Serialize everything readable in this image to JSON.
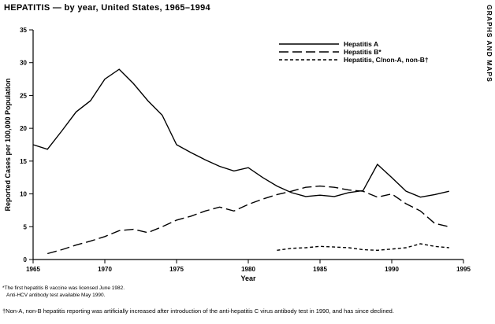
{
  "page": {
    "title": "HEPATITIS — by year, United States, 1965–1994",
    "side_label": "GRAPHS AND MAPS"
  },
  "chart_data": {
    "type": "line",
    "title": "HEPATITIS — by year, United States, 1965–1994",
    "xlabel": "Year",
    "ylabel": "Reported Cases per 100,000 Population",
    "xlim": [
      1965,
      1995
    ],
    "ylim": [
      0,
      35
    ],
    "x_ticks": [
      1965,
      1970,
      1975,
      1980,
      1985,
      1990,
      1995
    ],
    "y_ticks": [
      0,
      5,
      10,
      15,
      20,
      25,
      30,
      35
    ],
    "grid": false,
    "legend_position": "top-right",
    "line_color": "#000000",
    "series": [
      {
        "name": "Hepatitis A",
        "dash": "solid",
        "x": [
          1965,
          1966,
          1967,
          1968,
          1969,
          1970,
          1971,
          1972,
          1973,
          1974,
          1975,
          1976,
          1977,
          1978,
          1979,
          1980,
          1981,
          1982,
          1983,
          1984,
          1985,
          1986,
          1987,
          1988,
          1989,
          1990,
          1991,
          1992,
          1993,
          1994
        ],
        "values": [
          17.5,
          16.8,
          19.6,
          22.5,
          24.2,
          27.5,
          29.0,
          26.8,
          24.2,
          22.0,
          17.5,
          16.3,
          15.2,
          14.2,
          13.5,
          14.0,
          12.5,
          11.2,
          10.2,
          9.6,
          9.8,
          9.6,
          10.2,
          10.5,
          14.5,
          12.5,
          10.4,
          9.5,
          9.9,
          10.4
        ]
      },
      {
        "name": "Hepatitis B*",
        "dash": "long-dash",
        "x": [
          1966,
          1967,
          1968,
          1969,
          1970,
          1971,
          1972,
          1973,
          1974,
          1975,
          1976,
          1977,
          1978,
          1979,
          1980,
          1981,
          1982,
          1983,
          1984,
          1985,
          1986,
          1987,
          1988,
          1989,
          1990,
          1991,
          1992,
          1993,
          1994
        ],
        "values": [
          0.9,
          1.5,
          2.2,
          2.8,
          3.5,
          4.4,
          4.6,
          4.1,
          5.0,
          6.0,
          6.6,
          7.4,
          8.0,
          7.4,
          8.4,
          9.2,
          9.9,
          10.4,
          11.0,
          11.2,
          11.0,
          10.6,
          10.4,
          9.5,
          10.0,
          8.5,
          7.4,
          5.5,
          5.0
        ]
      },
      {
        "name": "Hepatitis, C/non-A, non-B†",
        "dash": "short-dash",
        "x": [
          1982,
          1983,
          1984,
          1985,
          1986,
          1987,
          1988,
          1989,
          1990,
          1991,
          1992,
          1993,
          1994
        ],
        "values": [
          1.4,
          1.7,
          1.8,
          2.0,
          1.9,
          1.8,
          1.5,
          1.4,
          1.6,
          1.8,
          2.4,
          2.0,
          1.8
        ]
      }
    ]
  },
  "footnotes": {
    "asterisk_line1": "*The first hepatitis B vaccine was licensed June 1982.",
    "asterisk_line2": "Anti-HCV antibody test available May 1990.",
    "dagger": "†Non-A, non-B hepatitis reporting was artificially increased after introduction of the anti-hepatitis C virus antibody test in 1990, and has since declined."
  }
}
